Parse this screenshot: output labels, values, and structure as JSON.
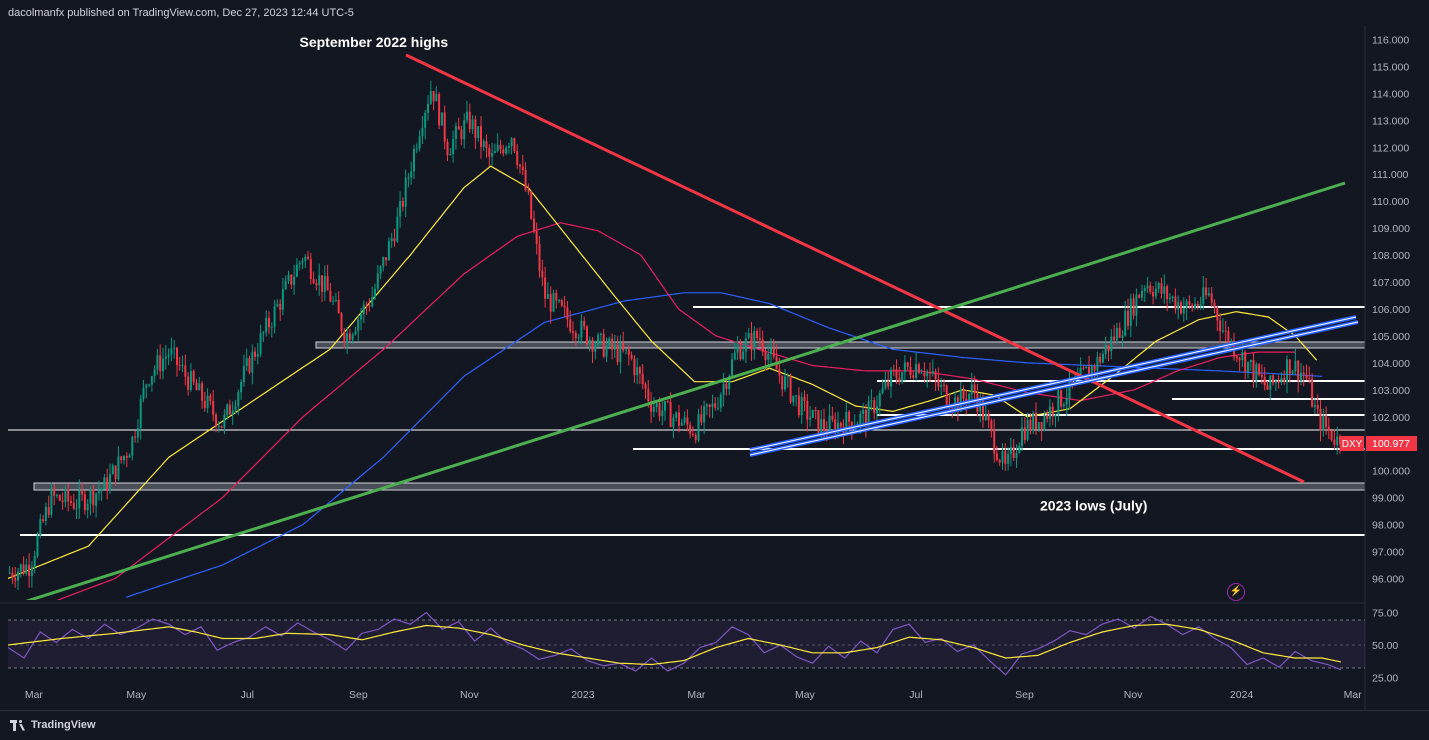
{
  "header": {
    "publisher": "dacolmanfx published on TradingView.com, Dec 27, 2023 12:44 UTC-5"
  },
  "footer": {
    "brand": "TradingView"
  },
  "chart_data": {
    "type": "candlestick",
    "symbol": "DXY",
    "last_price": "100.977",
    "y_ticks": [
      "116.000",
      "115.000",
      "114.000",
      "113.000",
      "112.000",
      "111.000",
      "110.000",
      "109.000",
      "108.000",
      "107.000",
      "106.000",
      "105.000",
      "104.000",
      "103.000",
      "102.000",
      "101.000",
      "100.000",
      "99.000",
      "98.000",
      "97.000",
      "96.000"
    ],
    "ylim": [
      95.2,
      116.5
    ],
    "x_ticks": [
      "Mar",
      "May",
      "Jul",
      "Sep",
      "Nov",
      "2023",
      "Mar",
      "May",
      "Jul",
      "Sep",
      "Nov",
      "2024",
      "Mar"
    ],
    "xlim": [
      0,
      25.3
    ],
    "annotations": [
      {
        "text": "September 2022 highs",
        "x": 7.0,
        "y": 115.9
      },
      {
        "text": "2023 lows (July)",
        "x": 19.8,
        "y": 98.7
      }
    ],
    "price_path": [
      [
        0.0,
        96.2
      ],
      [
        0.4,
        96.5
      ],
      [
        0.8,
        99.0
      ],
      [
        1.3,
        98.8
      ],
      [
        1.8,
        99.4
      ],
      [
        2.3,
        101.0
      ],
      [
        2.6,
        103.5
      ],
      [
        3.0,
        104.4
      ],
      [
        3.5,
        103.0
      ],
      [
        4.0,
        101.7
      ],
      [
        4.5,
        104.0
      ],
      [
        5.0,
        106.0
      ],
      [
        5.5,
        108.0
      ],
      [
        6.0,
        106.5
      ],
      [
        6.3,
        105.0
      ],
      [
        6.8,
        106.5
      ],
      [
        7.3,
        109.5
      ],
      [
        7.7,
        113.0
      ],
      [
        7.9,
        114.3
      ],
      [
        8.2,
        112.0
      ],
      [
        8.6,
        113.0
      ],
      [
        9.0,
        111.5
      ],
      [
        9.4,
        112.5
      ],
      [
        9.7,
        110.0
      ],
      [
        10.0,
        106.5
      ],
      [
        10.5,
        105.5
      ],
      [
        11.0,
        104.7
      ],
      [
        11.6,
        104.2
      ],
      [
        12.0,
        102.5
      ],
      [
        12.4,
        102.0
      ],
      [
        12.8,
        101.5
      ],
      [
        13.2,
        102.5
      ],
      [
        13.6,
        104.5
      ],
      [
        14.0,
        105.0
      ],
      [
        14.4,
        103.5
      ],
      [
        14.8,
        102.3
      ],
      [
        15.2,
        101.6
      ],
      [
        15.6,
        101.8
      ],
      [
        16.0,
        102.0
      ],
      [
        16.5,
        103.5
      ],
      [
        17.0,
        104.0
      ],
      [
        17.4,
        103.0
      ],
      [
        17.7,
        102.5
      ],
      [
        18.0,
        103.0
      ],
      [
        18.3,
        101.5
      ],
      [
        18.6,
        100.0
      ],
      [
        18.9,
        101.5
      ],
      [
        19.3,
        102.0
      ],
      [
        19.8,
        103.0
      ],
      [
        20.3,
        104.0
      ],
      [
        20.8,
        105.5
      ],
      [
        21.2,
        107.0
      ],
      [
        21.6,
        106.5
      ],
      [
        22.0,
        106.0
      ],
      [
        22.4,
        106.5
      ],
      [
        22.7,
        105.0
      ],
      [
        23.1,
        104.0
      ],
      [
        23.5,
        103.0
      ],
      [
        23.9,
        104.0
      ],
      [
        24.2,
        103.5
      ],
      [
        24.4,
        102.0
      ],
      [
        24.7,
        101.3
      ],
      [
        24.85,
        100.977
      ]
    ],
    "ma_yellow": [
      [
        0.0,
        96.0
      ],
      [
        1.5,
        97.2
      ],
      [
        3.0,
        100.5
      ],
      [
        4.5,
        102.5
      ],
      [
        6.0,
        104.5
      ],
      [
        7.5,
        108.0
      ],
      [
        8.5,
        110.5
      ],
      [
        9.0,
        111.3
      ],
      [
        9.7,
        110.5
      ],
      [
        10.5,
        108.5
      ],
      [
        11.3,
        106.5
      ],
      [
        12.0,
        104.8
      ],
      [
        12.8,
        103.3
      ],
      [
        13.5,
        103.3
      ],
      [
        14.2,
        103.8
      ],
      [
        15.0,
        103.2
      ],
      [
        15.8,
        102.4
      ],
      [
        16.5,
        102.2
      ],
      [
        17.2,
        102.6
      ],
      [
        17.8,
        103.0
      ],
      [
        18.4,
        102.8
      ],
      [
        19.0,
        102.0
      ],
      [
        19.8,
        102.3
      ],
      [
        20.6,
        103.5
      ],
      [
        21.4,
        104.8
      ],
      [
        22.2,
        105.6
      ],
      [
        22.9,
        105.9
      ],
      [
        23.5,
        105.7
      ],
      [
        24.0,
        105.0
      ],
      [
        24.4,
        104.1
      ]
    ],
    "ma_pink": [
      [
        0.0,
        94.5
      ],
      [
        2.0,
        96.0
      ],
      [
        4.0,
        99.0
      ],
      [
        5.5,
        102.0
      ],
      [
        7.0,
        104.5
      ],
      [
        8.5,
        107.3
      ],
      [
        9.5,
        108.7
      ],
      [
        10.3,
        109.2
      ],
      [
        11.0,
        108.9
      ],
      [
        11.8,
        108.0
      ],
      [
        12.5,
        106.0
      ],
      [
        13.2,
        105.0
      ],
      [
        14.0,
        104.5
      ],
      [
        15.0,
        103.9
      ],
      [
        16.0,
        103.7
      ],
      [
        17.0,
        103.7
      ],
      [
        18.0,
        103.4
      ],
      [
        19.0,
        102.9
      ],
      [
        20.0,
        102.6
      ],
      [
        21.0,
        103.0
      ],
      [
        21.8,
        103.7
      ],
      [
        22.6,
        104.2
      ],
      [
        23.3,
        104.4
      ],
      [
        24.0,
        104.4
      ]
    ],
    "ma_blue": [
      [
        2.2,
        95.3
      ],
      [
        4.0,
        96.5
      ],
      [
        5.5,
        98.0
      ],
      [
        7.0,
        100.5
      ],
      [
        8.5,
        103.5
      ],
      [
        10.0,
        105.5
      ],
      [
        11.5,
        106.3
      ],
      [
        12.6,
        106.6
      ],
      [
        13.3,
        106.6
      ],
      [
        14.2,
        106.2
      ],
      [
        15.3,
        105.3
      ],
      [
        16.5,
        104.5
      ],
      [
        17.8,
        104.2
      ],
      [
        19.0,
        104.0
      ],
      [
        20.2,
        103.9
      ],
      [
        21.4,
        103.8
      ],
      [
        22.6,
        103.7
      ],
      [
        23.6,
        103.6
      ],
      [
        24.5,
        103.5
      ]
    ],
    "rsi": {
      "ticks": [
        "75.00",
        "50.00",
        "25.00"
      ],
      "ylim": [
        20,
        80
      ],
      "path": [
        [
          0.0,
          48
        ],
        [
          0.3,
          40
        ],
        [
          0.6,
          60
        ],
        [
          0.9,
          52
        ],
        [
          1.2,
          62
        ],
        [
          1.5,
          55
        ],
        [
          1.8,
          66
        ],
        [
          2.1,
          58
        ],
        [
          2.4,
          63
        ],
        [
          2.7,
          70
        ],
        [
          3.0,
          66
        ],
        [
          3.3,
          58
        ],
        [
          3.6,
          64
        ],
        [
          3.9,
          46
        ],
        [
          4.2,
          52
        ],
        [
          4.5,
          56
        ],
        [
          4.8,
          64
        ],
        [
          5.1,
          57
        ],
        [
          5.4,
          67
        ],
        [
          5.7,
          60
        ],
        [
          6.0,
          54
        ],
        [
          6.3,
          46
        ],
        [
          6.6,
          59
        ],
        [
          6.9,
          62
        ],
        [
          7.2,
          70
        ],
        [
          7.5,
          66
        ],
        [
          7.8,
          75
        ],
        [
          8.1,
          62
        ],
        [
          8.4,
          68
        ],
        [
          8.7,
          53
        ],
        [
          9.0,
          63
        ],
        [
          9.3,
          52
        ],
        [
          9.6,
          47
        ],
        [
          9.9,
          39
        ],
        [
          10.2,
          42
        ],
        [
          10.5,
          47
        ],
        [
          10.8,
          38
        ],
        [
          11.1,
          34
        ],
        [
          11.4,
          36
        ],
        [
          11.7,
          30
        ],
        [
          12.0,
          40
        ],
        [
          12.3,
          30
        ],
        [
          12.6,
          36
        ],
        [
          12.9,
          48
        ],
        [
          13.2,
          52
        ],
        [
          13.5,
          64
        ],
        [
          13.8,
          58
        ],
        [
          14.1,
          44
        ],
        [
          14.4,
          50
        ],
        [
          14.7,
          41
        ],
        [
          15.0,
          36
        ],
        [
          15.3,
          49
        ],
        [
          15.6,
          40
        ],
        [
          15.9,
          53
        ],
        [
          16.2,
          44
        ],
        [
          16.5,
          62
        ],
        [
          16.8,
          66
        ],
        [
          17.1,
          52
        ],
        [
          17.4,
          55
        ],
        [
          17.7,
          45
        ],
        [
          18.0,
          50
        ],
        [
          18.3,
          38
        ],
        [
          18.6,
          27
        ],
        [
          18.9,
          43
        ],
        [
          19.2,
          47
        ],
        [
          19.5,
          53
        ],
        [
          19.8,
          61
        ],
        [
          20.1,
          58
        ],
        [
          20.4,
          66
        ],
        [
          20.7,
          70
        ],
        [
          21.0,
          63
        ],
        [
          21.3,
          72
        ],
        [
          21.6,
          66
        ],
        [
          21.9,
          58
        ],
        [
          22.2,
          64
        ],
        [
          22.5,
          55
        ],
        [
          22.8,
          48
        ],
        [
          23.1,
          35
        ],
        [
          23.4,
          40
        ],
        [
          23.7,
          33
        ],
        [
          24.0,
          45
        ],
        [
          24.3,
          38
        ],
        [
          24.6,
          35
        ],
        [
          24.85,
          31
        ]
      ],
      "signal": [
        [
          0.0,
          50
        ],
        [
          1.0,
          55
        ],
        [
          2.0,
          59
        ],
        [
          3.0,
          64
        ],
        [
          3.5,
          60
        ],
        [
          4.0,
          55
        ],
        [
          4.6,
          55
        ],
        [
          5.2,
          59
        ],
        [
          6.0,
          58
        ],
        [
          6.6,
          54
        ],
        [
          7.2,
          60
        ],
        [
          7.8,
          65
        ],
        [
          8.4,
          63
        ],
        [
          9.0,
          58
        ],
        [
          9.6,
          50
        ],
        [
          10.2,
          44
        ],
        [
          10.8,
          40
        ],
        [
          11.4,
          36
        ],
        [
          12.0,
          35
        ],
        [
          12.6,
          38
        ],
        [
          13.2,
          48
        ],
        [
          13.8,
          55
        ],
        [
          14.4,
          50
        ],
        [
          15.0,
          44
        ],
        [
          15.6,
          44
        ],
        [
          16.2,
          48
        ],
        [
          16.8,
          56
        ],
        [
          17.4,
          54
        ],
        [
          18.0,
          48
        ],
        [
          18.6,
          40
        ],
        [
          19.2,
          42
        ],
        [
          19.8,
          52
        ],
        [
          20.4,
          60
        ],
        [
          21.0,
          65
        ],
        [
          21.6,
          66
        ],
        [
          22.2,
          62
        ],
        [
          22.8,
          54
        ],
        [
          23.4,
          44
        ],
        [
          24.0,
          40
        ],
        [
          24.5,
          40
        ],
        [
          24.85,
          37
        ]
      ]
    }
  }
}
